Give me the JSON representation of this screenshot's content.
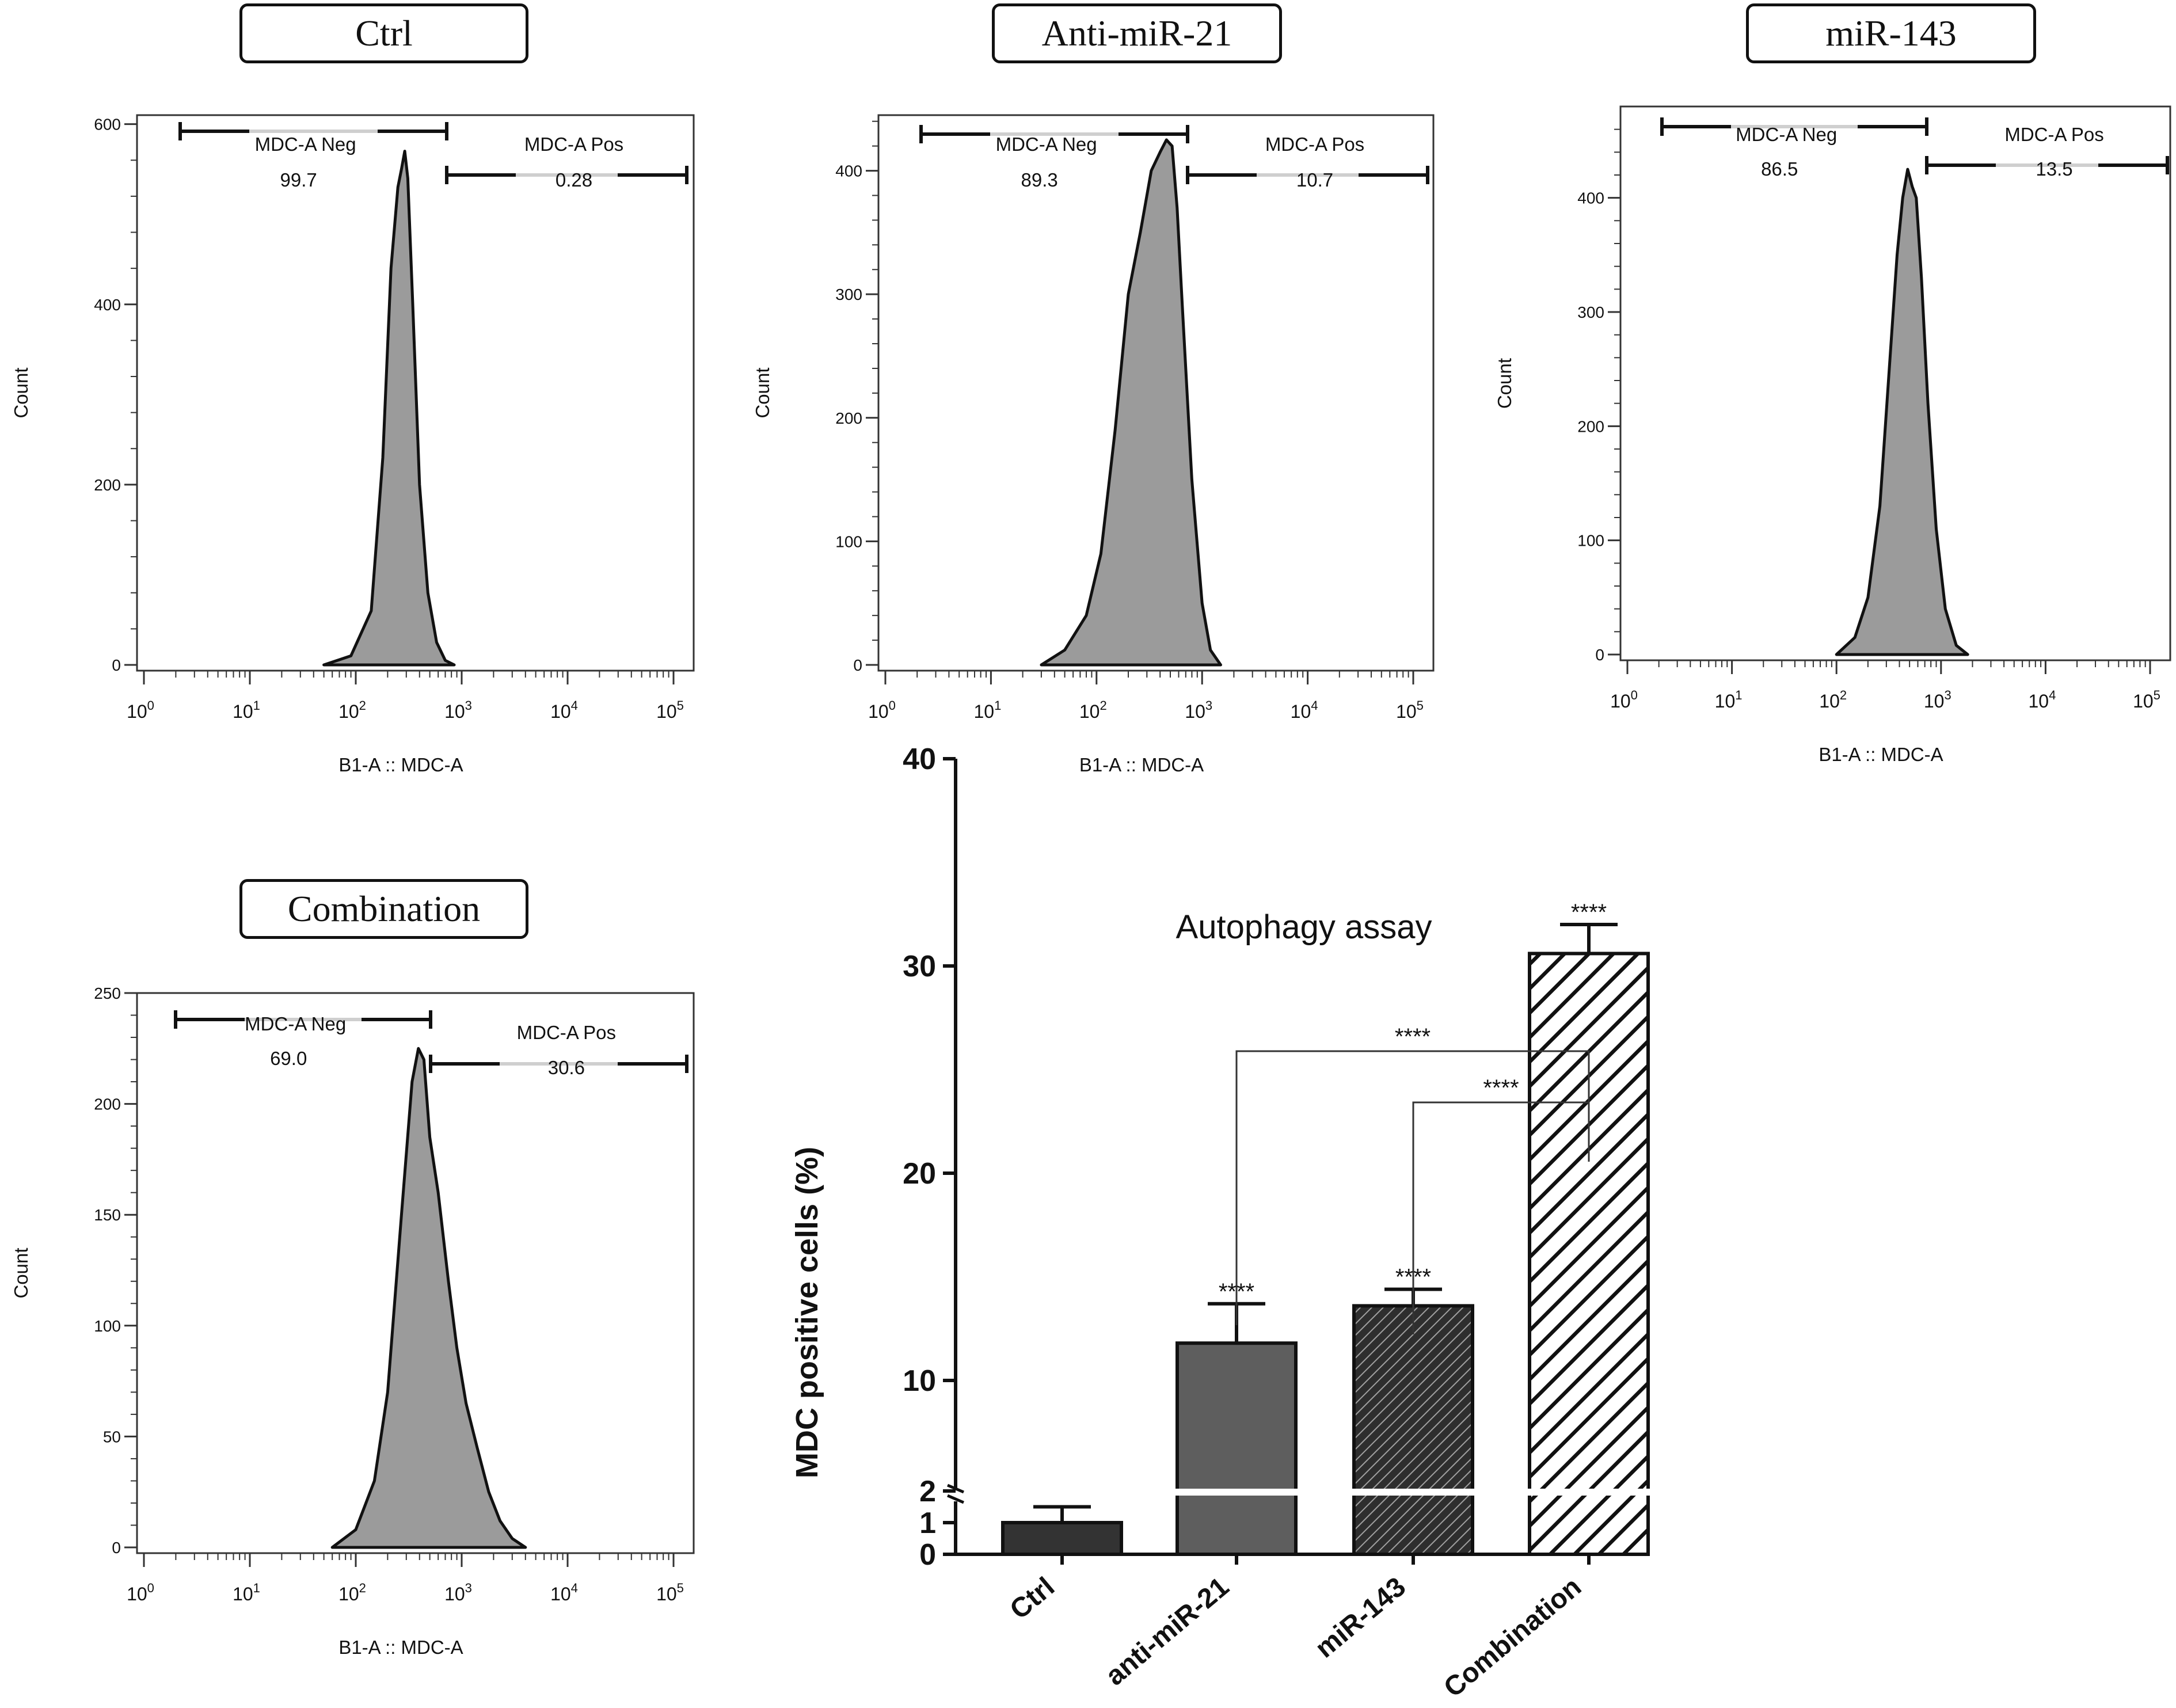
{
  "histogram_title_boxes": [
    "Ctrl",
    "Anti-miR-21",
    "miR-143",
    "Combination"
  ],
  "bar_panel_title": "Autophagy assay",
  "chart_data": [
    {
      "type": "area",
      "title": "Ctrl",
      "xlabel": "B1-A :: MDC-A",
      "ylabel": "Count",
      "x_scale": "log",
      "x_ticks": [
        "10^0",
        "10^1",
        "10^2",
        "10^3",
        "10^4",
        "10^5"
      ],
      "y_ticks": [
        0,
        200,
        400,
        600
      ],
      "ylim": [
        0,
        610
      ],
      "gates": [
        {
          "name": "MDC-A Neg",
          "value": "99.7",
          "range": [
            1.6,
            900
          ]
        },
        {
          "name": "MDC-A Pos",
          "value": "0.28",
          "range": [
            900,
            120000
          ]
        }
      ],
      "series": [
        {
          "x": [
            50,
            90,
            140,
            180,
            215,
            250,
            270,
            290,
            310,
            345,
            400,
            480,
            580,
            700,
            850
          ],
          "y": [
            0,
            10,
            60,
            230,
            440,
            530,
            550,
            570,
            540,
            400,
            200,
            80,
            25,
            5,
            0
          ]
        }
      ]
    },
    {
      "type": "area",
      "title": "Anti-miR-21",
      "xlabel": "B1-A :: MDC-A",
      "ylabel": "Count",
      "x_scale": "log",
      "x_ticks": [
        "10^0",
        "10^1",
        "10^2",
        "10^3",
        "10^4",
        "10^5"
      ],
      "y_ticks": [
        0,
        100,
        200,
        300,
        400
      ],
      "ylim": [
        0,
        445
      ],
      "gates": [
        {
          "name": "MDC-A Neg",
          "value": "89.3",
          "range": [
            1.6,
            950
          ]
        },
        {
          "name": "MDC-A Pos",
          "value": "10.7",
          "range": [
            950,
            120000
          ]
        }
      ],
      "series": [
        {
          "x": [
            30,
            50,
            80,
            110,
            150,
            200,
            260,
            330,
            400,
            460,
            520,
            580,
            650,
            800,
            1000,
            1200,
            1500
          ],
          "y": [
            0,
            12,
            40,
            90,
            190,
            300,
            350,
            400,
            415,
            425,
            420,
            370,
            290,
            150,
            50,
            12,
            0
          ]
        }
      ]
    },
    {
      "type": "area",
      "title": "miR-143",
      "xlabel": "B1-A :: MDC-A",
      "ylabel": "Count",
      "x_scale": "log",
      "x_ticks": [
        "10^0",
        "10^1",
        "10^2",
        "10^3",
        "10^4",
        "10^5"
      ],
      "y_ticks": [
        0,
        100,
        200,
        300,
        400
      ],
      "ylim": [
        0,
        480
      ],
      "gates": [
        {
          "name": "MDC-A Neg",
          "value": "86.5",
          "range": [
            1.6,
            950
          ]
        },
        {
          "name": "MDC-A Pos",
          "value": "13.5",
          "range": [
            950,
            120000
          ]
        }
      ],
      "series": [
        {
          "x": [
            100,
            150,
            200,
            260,
            320,
            380,
            430,
            480,
            530,
            580,
            650,
            750,
            900,
            1100,
            1400,
            1800
          ],
          "y": [
            0,
            15,
            50,
            130,
            250,
            350,
            400,
            425,
            410,
            400,
            330,
            220,
            110,
            40,
            8,
            0
          ]
        }
      ]
    },
    {
      "type": "area",
      "title": "Combination",
      "xlabel": "B1-A :: MDC-A",
      "ylabel": "Count",
      "x_scale": "log",
      "x_ticks": [
        "10^0",
        "10^1",
        "10^2",
        "10^3",
        "10^4",
        "10^5"
      ],
      "y_ticks": [
        0,
        50,
        100,
        150,
        200,
        250
      ],
      "ylim": [
        0,
        250
      ],
      "gates": [
        {
          "name": "MDC-A Neg",
          "value": "69.0",
          "range": [
            1.6,
            700
          ]
        },
        {
          "name": "MDC-A Pos",
          "value": "30.6",
          "range": [
            700,
            120000
          ]
        }
      ],
      "series": [
        {
          "x": [
            60,
            100,
            150,
            200,
            270,
            340,
            390,
            440,
            500,
            600,
            750,
            900,
            1100,
            1400,
            1800,
            2300,
            3000,
            4000
          ],
          "y": [
            0,
            8,
            30,
            70,
            150,
            210,
            225,
            220,
            185,
            160,
            120,
            90,
            65,
            45,
            25,
            12,
            4,
            0
          ]
        }
      ]
    },
    {
      "type": "bar",
      "title": "Autophagy assay",
      "ylabel": "MDC positive cells (%)",
      "categories": [
        "Ctrl",
        "anti-miR-21",
        "miR-143",
        "Combination"
      ],
      "values": [
        1.0,
        11.8,
        13.6,
        30.6
      ],
      "errors": [
        0.5,
        1.9,
        0.8,
        1.4
      ],
      "y_ticks": [
        0,
        1,
        2,
        10,
        20,
        30,
        40
      ],
      "y_axis_break": [
        2,
        5
      ],
      "significance": [
        "",
        "****",
        "****",
        "****"
      ],
      "comparisons": [
        {
          "from": "anti-miR-21",
          "to": "Combination",
          "label": "****"
        },
        {
          "from": "miR-143",
          "to": "Combination",
          "label": "****"
        }
      ]
    }
  ]
}
